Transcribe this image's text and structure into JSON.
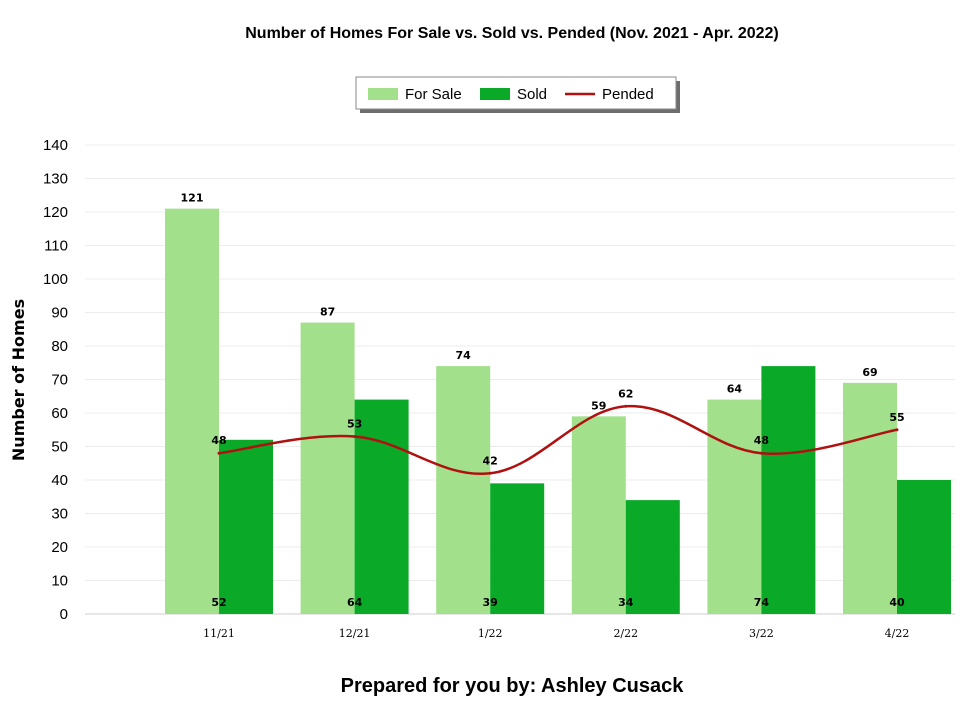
{
  "chart_data": {
    "type": "bar",
    "title": "Number of Homes For Sale vs. Sold vs. Pended (Nov. 2021 - Apr. 2022)",
    "xlabel": "",
    "ylabel": "Number of Homes",
    "categories": [
      "11/21",
      "12/21",
      "1/22",
      "2/22",
      "3/22",
      "4/22"
    ],
    "ylim": [
      0,
      140
    ],
    "yticks": [
      0,
      10,
      20,
      30,
      40,
      50,
      60,
      70,
      80,
      90,
      100,
      110,
      120,
      130,
      140
    ],
    "grid": true,
    "legend_position": "top-center",
    "series": [
      {
        "name": "For Sale",
        "kind": "bar",
        "color": "#a3e08c",
        "values": [
          121,
          87,
          74,
          59,
          64,
          69
        ]
      },
      {
        "name": "Sold",
        "kind": "bar",
        "color": "#0aaa28",
        "values": [
          52,
          64,
          39,
          34,
          74,
          40
        ]
      },
      {
        "name": "Pended",
        "kind": "line",
        "color": "#b01010",
        "values": [
          48,
          53,
          42,
          62,
          48,
          55
        ]
      }
    ]
  },
  "footer": {
    "text": "Prepared for you by: Ashley Cusack"
  }
}
